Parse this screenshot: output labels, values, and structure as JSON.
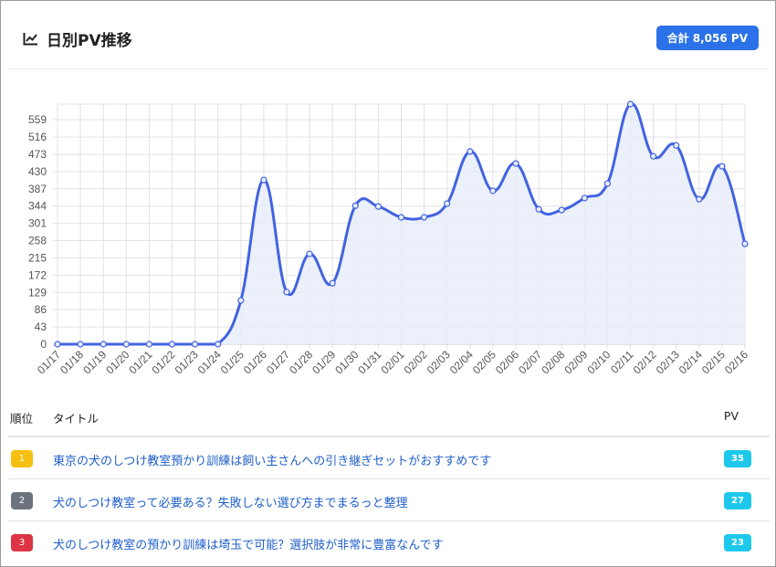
{
  "header": {
    "title": "日別PV推移",
    "icon": "line-chart-icon",
    "total_badge": "合計 8,056 PV"
  },
  "chart_data": {
    "type": "line",
    "title": "日別PV推移",
    "x": [
      "01/17",
      "01/18",
      "01/19",
      "01/20",
      "01/21",
      "01/22",
      "01/23",
      "01/24",
      "01/25",
      "01/26",
      "01/27",
      "01/28",
      "01/29",
      "01/30",
      "01/31",
      "02/01",
      "02/02",
      "02/03",
      "02/04",
      "02/05",
      "02/06",
      "02/07",
      "02/08",
      "02/09",
      "02/10",
      "02/11",
      "02/12",
      "02/13",
      "02/14",
      "02/15",
      "02/16"
    ],
    "series": [
      {
        "name": "PV",
        "values": [
          0,
          0,
          0,
          0,
          0,
          0,
          0,
          0,
          109,
          409,
          130,
          225,
          152,
          345,
          343,
          316,
          316,
          350,
          480,
          382,
          450,
          336,
          334,
          364,
          400,
          598,
          468,
          495,
          361,
          443,
          250
        ]
      }
    ],
    "yticks": [
      0,
      43,
      86,
      129,
      172,
      215,
      258,
      301,
      344,
      387,
      430,
      473,
      516,
      559
    ],
    "ylim": [
      0,
      598
    ],
    "grid": true,
    "colors": {
      "line": "#4263e0",
      "fill": "#e8edf9"
    }
  },
  "table": {
    "headers": {
      "rank": "順位",
      "title": "タイトル",
      "pv": "PV"
    },
    "rows": [
      {
        "rank": "1",
        "title": "東京の犬のしつけ教室預かり訓練は飼い主さんへの引き継ぎセットがおすすめです",
        "pv": "35",
        "color": "#f5c00f"
      },
      {
        "rank": "2",
        "title": "犬のしつけ教室って必要ある？失敗しない選び方までまるっと整理",
        "pv": "27",
        "color": "#6c737d"
      },
      {
        "rank": "3",
        "title": "犬のしつけ教室の預かり訓練は埼玉で可能？選択肢が非常に豊富なんです",
        "pv": "23",
        "color": "#dc3545"
      }
    ]
  }
}
